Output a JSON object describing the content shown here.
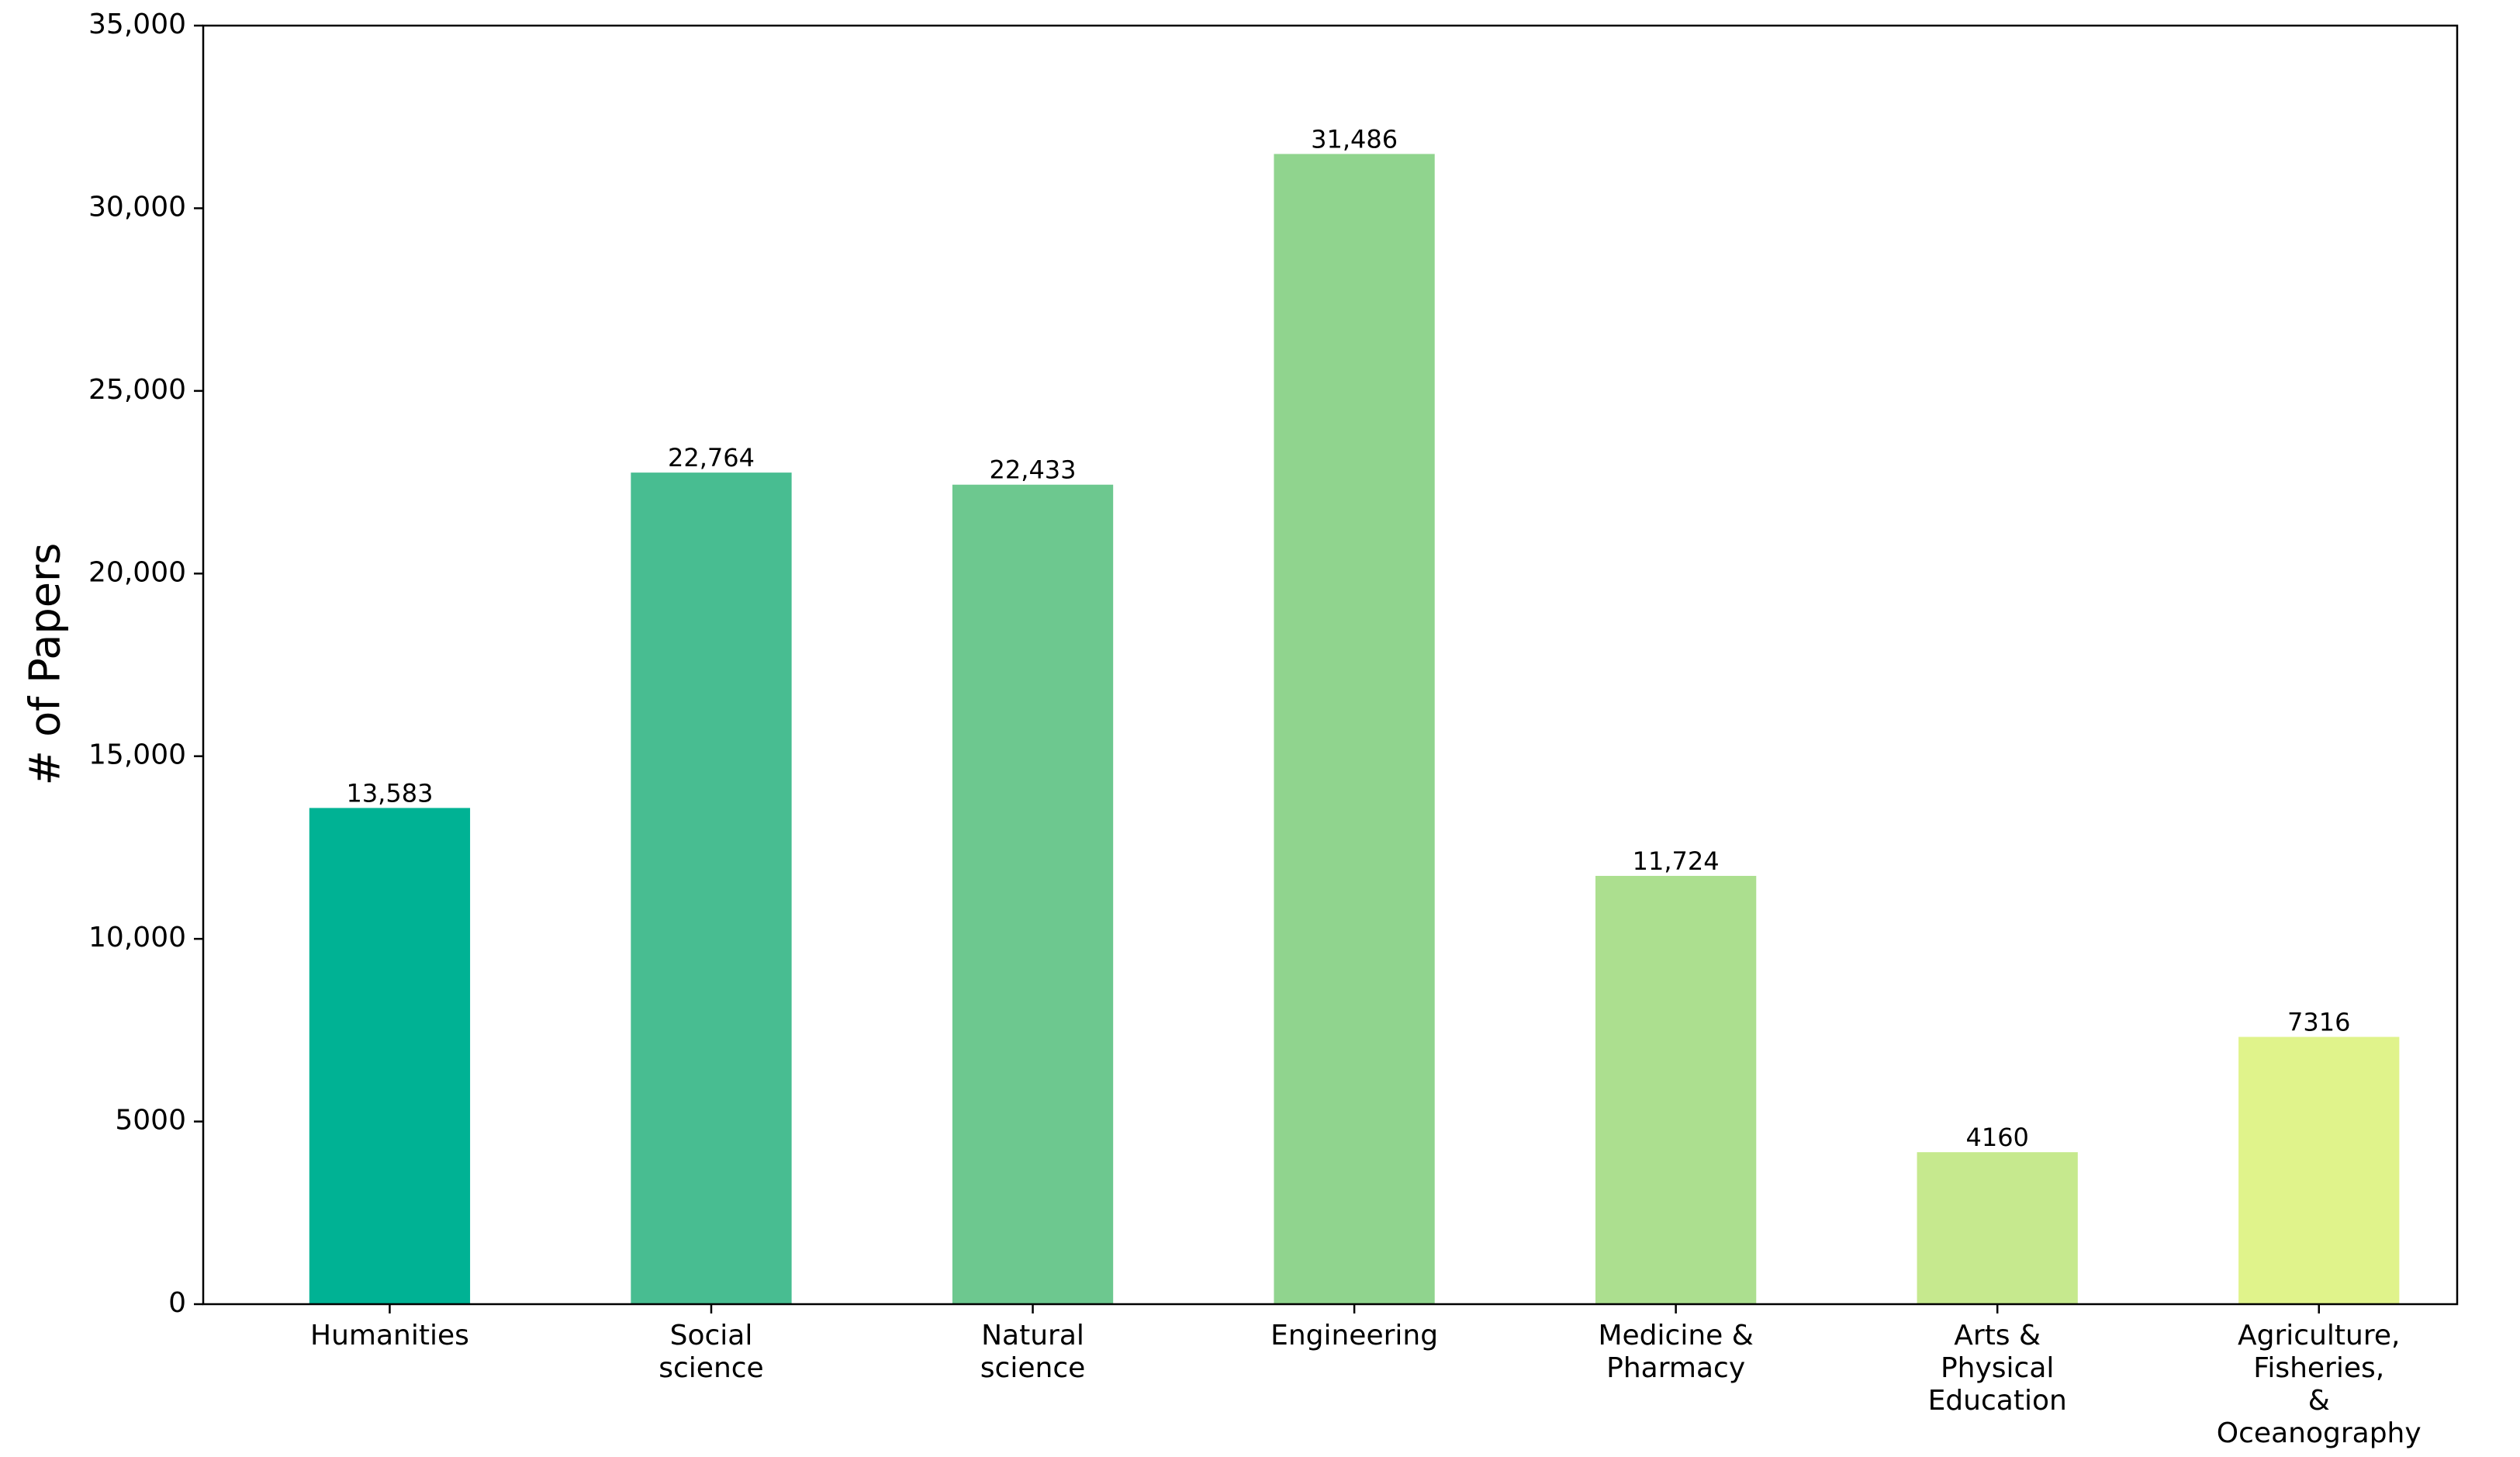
{
  "chart_data": {
    "type": "bar",
    "y_label": "# of Papers",
    "categories": [
      "Humanities",
      "Social\nscience",
      "Natural\nscience",
      "Engineering",
      "Medicine &\nPharmacy",
      "Arts &\nPhysical\nEducation",
      "Agriculture,\nFisheries,\n&\nOceanography"
    ],
    "values": [
      13583,
      22764,
      22433,
      31486,
      11724,
      4160,
      7316
    ],
    "value_labels": [
      "13,583",
      "22,764",
      "22,433",
      "31,486",
      "11,724",
      "4160",
      "7316"
    ],
    "colors": [
      "#00b294",
      "#48bd91",
      "#6dc88f",
      "#90d48e",
      "#acdf8f",
      "#c6e98e",
      "#e0f38b"
    ],
    "ylim": [
      0,
      35000
    ],
    "yticks": [
      0,
      5000,
      {
        "value": 10000,
        "label": "10,000"
      },
      {
        "value": 15000,
        "label": "15,000"
      },
      {
        "value": 20000,
        "label": "20,000"
      },
      {
        "value": 25000,
        "label": "25,000"
      },
      {
        "value": 30000,
        "label": "30,000"
      },
      {
        "value": 35000,
        "label": "35,000"
      }
    ]
  }
}
